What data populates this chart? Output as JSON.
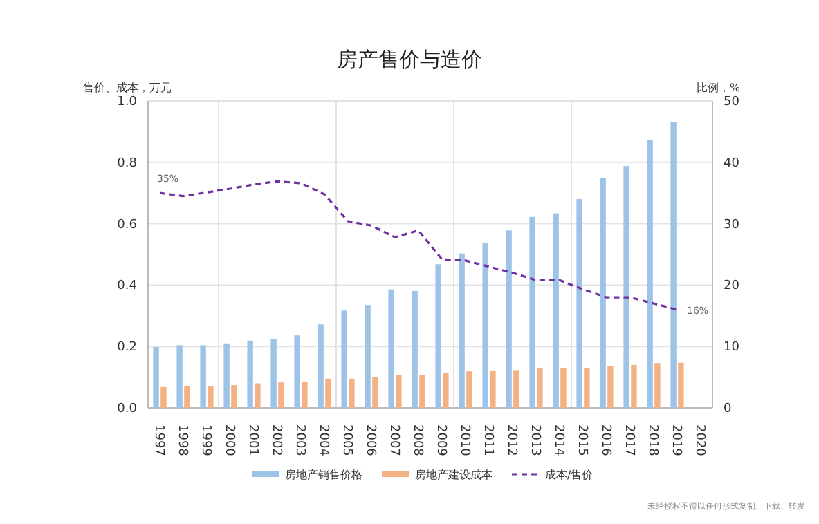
{
  "chart_data": {
    "type": "bar",
    "title": "房产售价与造价",
    "ylabel": "售价、成本，万元",
    "y2label": "比例，%",
    "categories": [
      "1997",
      "1998",
      "1999",
      "2000",
      "2001",
      "2002",
      "2003",
      "2004",
      "2005",
      "2006",
      "2007",
      "2008",
      "2009",
      "2010",
      "2011",
      "2012",
      "2013",
      "2014",
      "2015",
      "2016",
      "2017",
      "2018",
      "2019",
      "2020"
    ],
    "series": [
      {
        "name": "房地产销售价格",
        "color": "#9dc3e6",
        "values": [
          0.198,
          0.204,
          0.204,
          0.21,
          0.219,
          0.224,
          0.236,
          0.272,
          0.317,
          0.335,
          0.386,
          0.381,
          0.468,
          0.503,
          0.536,
          0.578,
          0.622,
          0.634,
          0.68,
          0.748,
          0.788,
          0.874,
          0.931,
          null
        ]
      },
      {
        "name": "房地产建设成本",
        "color": "#f4b183",
        "values": [
          0.068,
          0.072,
          0.072,
          0.074,
          0.08,
          0.083,
          0.084,
          0.095,
          0.095,
          0.1,
          0.107,
          0.108,
          0.113,
          0.119,
          0.12,
          0.123,
          0.13,
          0.13,
          0.13,
          0.135,
          0.14,
          0.146,
          0.147,
          null
        ]
      },
      {
        "name": "成本/售价",
        "type": "line",
        "axis": "y2",
        "color": "#7030a0",
        "line_style": "dashed",
        "values": [
          35,
          34.5,
          35.1,
          35.7,
          36.4,
          36.9,
          36.6,
          34.8,
          30.4,
          29.7,
          27.8,
          28.9,
          24.2,
          24.0,
          23.0,
          22.0,
          20.8,
          20.8,
          19.3,
          18.0,
          18.0,
          17.0,
          16,
          null
        ]
      }
    ],
    "ylim": [
      0,
      1
    ],
    "yticks": [
      {
        "value": 0,
        "label": "0.0"
      },
      {
        "value": 0.2,
        "label": "0.2"
      },
      {
        "value": 0.4,
        "label": "0.4"
      },
      {
        "value": 0.6,
        "label": "0.6"
      },
      {
        "value": 0.8,
        "label": "0.8"
      },
      {
        "value": 1,
        "label": "1.0"
      }
    ],
    "y2lim": [
      0,
      50
    ],
    "y2ticks": [
      0,
      10,
      20,
      30,
      40,
      50
    ],
    "grid": true,
    "legend": "bottom",
    "marker": "none",
    "annotations": [
      "35%",
      "16%",
      "未经授权不得以任何形式复制、下载、转发"
    ]
  }
}
